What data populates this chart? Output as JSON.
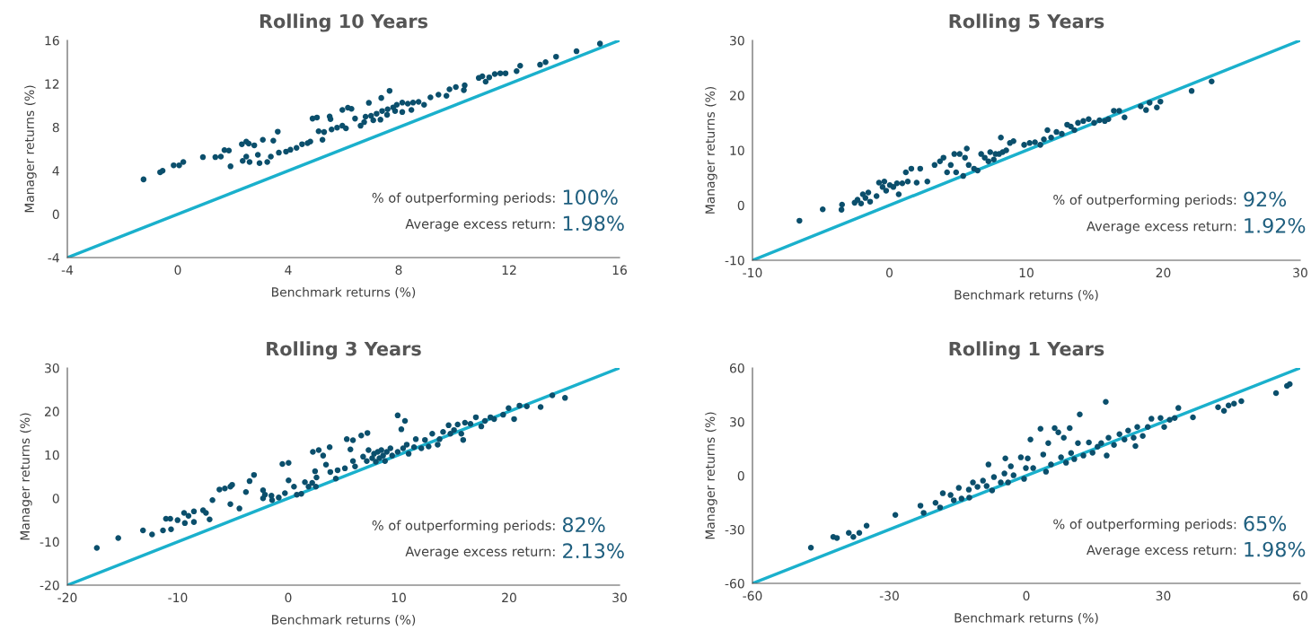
{
  "chart_data": [
    {
      "type": "scatter",
      "title": "Rolling 10 Years",
      "xlabel": "Benchmark returns (%)",
      "ylabel": "Manager returns (%)",
      "xlim": [
        -4,
        16
      ],
      "ylim": [
        -4,
        16
      ],
      "xticks": [
        -4,
        0,
        4,
        8,
        12,
        16
      ],
      "yticks": [
        -4,
        0,
        4,
        8,
        12,
        16
      ],
      "annotations": [
        "% of outperforming periods:",
        "100%",
        "Average excess return:",
        "1.98%"
      ],
      "series": [
        {
          "marker": "circle",
          "color": "#0b4f6c",
          "x": [
            -1.24,
            -0.64,
            -0.55,
            -0.15,
            0.05,
            0.2,
            0.91,
            1.36,
            1.56,
            1.69,
            1.85,
            1.91,
            2.32,
            2.48,
            2.57,
            2.77,
            2.35,
            2.48,
            2.6,
            2.9,
            2.96,
            3.08,
            3.24,
            3.37,
            3.46,
            3.62,
            3.66,
            3.92,
            4.08,
            4.3,
            4.5,
            4.7,
            4.8,
            4.88,
            5.04,
            5.1,
            5.24,
            5.3,
            5.5,
            5.53,
            5.57,
            5.77,
            5.96,
            6.09,
            5.96,
            6.16,
            6.29,
            6.42,
            6.62,
            6.75,
            6.8,
            6.92,
            7.37,
            7.67,
            7.0,
            7.2,
            7.4,
            7.6,
            7.8,
            7.93,
            8.13,
            8.33,
            8.52,
            8.72,
            8.92,
            7.08,
            7.34,
            7.58,
            7.87,
            8.13,
            8.46,
            9.15,
            9.44,
            9.73,
            9.84,
            10.07,
            10.39,
            10.36,
            10.9,
            11.03,
            11.15,
            11.28,
            11.48,
            11.68,
            11.87,
            12.27,
            12.4,
            13.12,
            13.32,
            13.7,
            14.44,
            15.29
          ],
          "values": [
            3.2,
            3.86,
            4.0,
            4.5,
            4.5,
            4.8,
            5.25,
            5.25,
            5.3,
            5.9,
            5.86,
            4.4,
            6.44,
            6.68,
            6.5,
            6.34,
            4.9,
            5.3,
            4.8,
            5.46,
            4.7,
            6.85,
            4.8,
            5.3,
            6.76,
            7.6,
            5.66,
            5.76,
            5.93,
            6.1,
            6.44,
            6.54,
            6.68,
            8.8,
            8.9,
            7.63,
            6.85,
            7.56,
            9.0,
            8.75,
            7.8,
            7.97,
            8.14,
            7.9,
            9.6,
            9.8,
            9.7,
            8.8,
            8.14,
            8.47,
            8.98,
            10.25,
            10.7,
            11.36,
            9.05,
            9.25,
            9.5,
            9.66,
            9.83,
            10.07,
            10.27,
            10.17,
            10.27,
            10.34,
            10.07,
            8.64,
            8.7,
            9.15,
            9.5,
            9.4,
            9.6,
            10.75,
            11.0,
            10.9,
            11.5,
            11.7,
            11.86,
            11.42,
            12.54,
            12.7,
            12.2,
            12.6,
            12.9,
            12.97,
            12.97,
            13.17,
            13.66,
            13.76,
            14.0,
            14.5,
            15.0,
            15.7
          ]
        },
        {
          "type": "line",
          "color": "#1ab0cc",
          "x": [
            -4,
            16
          ],
          "values": [
            -4,
            16
          ]
        }
      ]
    },
    {
      "type": "scatter",
      "title": "Rolling 5 Years",
      "xlabel": "Benchmark returns (%)",
      "ylabel": "Manager returns (%)",
      "xlim": [
        -10,
        30
      ],
      "ylim": [
        -10,
        30
      ],
      "xticks": [
        -10,
        0,
        10,
        20,
        30
      ],
      "yticks": [
        -10,
        0,
        10,
        20,
        30
      ],
      "annotations": [
        "% of outperforming periods:",
        "92%",
        "Average excess return:",
        "1.92%"
      ],
      "series": [
        {
          "marker": "circle",
          "color": "#0b4f6c",
          "x": [
            -6.57,
            -4.87,
            -3.5,
            -3.46,
            -2.54,
            -2.33,
            -2.07,
            -1.94,
            -1.75,
            -1.54,
            -1.41,
            -0.94,
            -0.76,
            -0.5,
            -0.37,
            -0.24,
            0.03,
            0.29,
            0.55,
            0.68,
            0.94,
            1.2,
            1.34,
            1.6,
            1.99,
            2.25,
            2.77,
            3.3,
            3.69,
            3.95,
            4.21,
            4.48,
            4.74,
            4.87,
            5.13,
            5.39,
            5.52,
            5.65,
            5.79,
            6.18,
            6.44,
            6.7,
            6.96,
            7.23,
            7.36,
            7.62,
            7.75,
            8.01,
            8.14,
            8.27,
            8.53,
            8.8,
            9.06,
            9.84,
            10.24,
            10.63,
            11.02,
            11.28,
            11.54,
            11.81,
            12.2,
            12.59,
            12.98,
            13.25,
            13.51,
            13.77,
            14.16,
            14.55,
            14.95,
            15.34,
            15.73,
            15.99,
            16.39,
            16.78,
            17.17,
            18.35,
            18.74,
            19.0,
            19.53,
            19.79,
            22.07,
            23.53
          ],
          "values": [
            -2.8,
            -0.73,
            -0.8,
            0.13,
            0.47,
            1.0,
            0.33,
            2.0,
            1.33,
            2.33,
            0.67,
            1.67,
            4.13,
            3.33,
            4.33,
            2.67,
            3.67,
            3.33,
            4.0,
            2.0,
            4.0,
            6.0,
            4.33,
            6.67,
            4.13,
            6.67,
            4.33,
            7.33,
            8.0,
            8.67,
            6.0,
            7.33,
            9.33,
            6.0,
            9.33,
            5.33,
            8.67,
            10.33,
            7.33,
            6.67,
            6.33,
            9.33,
            8.67,
            8.0,
            9.67,
            8.33,
            9.33,
            9.33,
            12.33,
            9.67,
            10.0,
            11.33,
            11.67,
            11.0,
            11.33,
            11.47,
            11.0,
            12.0,
            13.67,
            12.33,
            13.33,
            13.0,
            14.67,
            14.33,
            13.67,
            15.0,
            15.33,
            15.67,
            15.0,
            15.47,
            15.33,
            15.67,
            17.2,
            17.2,
            16.0,
            18.0,
            17.33,
            18.67,
            17.8,
            18.87,
            20.8,
            22.53
          ]
        },
        {
          "type": "line",
          "color": "#1ab0cc",
          "x": [
            -10,
            30
          ],
          "values": [
            -10,
            30
          ]
        }
      ]
    },
    {
      "type": "scatter",
      "title": "Rolling 3 Years",
      "xlabel": "Benchmark returns (%)",
      "ylabel": "Manager returns (%)",
      "xlim": [
        -20,
        30
      ],
      "ylim": [
        -20,
        30
      ],
      "xticks": [
        -20,
        -10,
        0,
        10,
        20,
        30
      ],
      "yticks": [
        -20,
        -10,
        0,
        10,
        20,
        30
      ],
      "annotations": [
        "% of outperforming periods:",
        "82%",
        "Average excess return:",
        "2.13%"
      ],
      "series": [
        {
          "marker": "circle",
          "color": "#0b4f6c",
          "x": [
            -17.33,
            -15.39,
            -13.15,
            -12.33,
            -11.34,
            -10.61,
            -11.07,
            -10.68,
            -10.02,
            -9.43,
            -9.03,
            -8.54,
            -9.36,
            -8.54,
            -7.71,
            -7.45,
            -7.12,
            -6.86,
            -6.23,
            -5.74,
            -5.24,
            -5.08,
            -5.24,
            -4.42,
            -3.83,
            -3.5,
            -3.1,
            -2.28,
            -2.28,
            -2.11,
            -1.52,
            -1.46,
            -0.86,
            -0.53,
            0.03,
            0.03,
            -0.3,
            0.52,
            0.78,
            1.18,
            1.51,
            1.84,
            2.17,
            2.5,
            2.23,
            2.76,
            3.16,
            3.75,
            2.43,
            2.56,
            3.42,
            3.81,
            4.47,
            4.31,
            5.13,
            5.3,
            5.86,
            5.63,
            5.86,
            6.05,
            6.61,
            7.17,
            6.78,
            7.11,
            7.27,
            7.6,
            7.77,
            7.93,
            8.1,
            8.26,
            8.43,
            8.59,
            8.76,
            8.92,
            9.25,
            9.41,
            9.91,
            10.57,
            10.24,
            9.91,
            10.4,
            10.9,
            10.73,
            11.55,
            11.39,
            12.05,
            12.38,
            12.71,
            13.04,
            13.53,
            13.7,
            14.02,
            14.52,
            14.68,
            15.01,
            15.34,
            15.67,
            15.84,
            16.0,
            16.5,
            16.99,
            17.48,
            17.81,
            18.31,
            18.64,
            19.46,
            19.95,
            20.45,
            20.94,
            21.6,
            22.85,
            23.91,
            25.06
          ],
          "values": [
            -11.43,
            -9.16,
            -7.39,
            -8.32,
            -7.39,
            -7.14,
            -4.71,
            -4.71,
            -5.04,
            -3.36,
            -4.03,
            -3.03,
            -5.71,
            -5.46,
            -2.77,
            -3.36,
            -4.87,
            -0.42,
            2.02,
            2.27,
            2.69,
            3.11,
            -1.34,
            -2.35,
            1.43,
            3.95,
            5.38,
            1.85,
            0.0,
            0.84,
            0.59,
            -0.42,
            0.17,
            7.9,
            8.15,
            4.12,
            1.18,
            2.69,
            0.84,
            1.01,
            3.7,
            2.69,
            3.53,
            2.69,
            10.67,
            11.09,
            9.83,
            11.76,
            6.22,
            4.79,
            7.73,
            6.05,
            6.47,
            4.54,
            6.89,
            13.61,
            13.36,
            11.26,
            8.57,
            7.31,
            14.45,
            15.04,
            9.58,
            8.57,
            11.09,
            9.24,
            10.25,
            8.4,
            10.67,
            9.24,
            11.09,
            9.83,
            8.57,
            10.67,
            11.51,
            9.83,
            19.08,
            17.82,
            15.88,
            10.67,
            11.51,
            10.25,
            12.35,
            13.61,
            11.76,
            11.51,
            13.44,
            11.93,
            14.87,
            12.35,
            13.61,
            15.29,
            16.81,
            14.87,
            15.71,
            16.97,
            14.87,
            13.44,
            17.39,
            17.14,
            18.66,
            16.55,
            17.82,
            18.66,
            18.24,
            19.24,
            20.76,
            18.24,
            21.34,
            21.18,
            21.01,
            23.7,
            23.11
          ]
        },
        {
          "type": "line",
          "color": "#1ab0cc",
          "x": [
            -20,
            30
          ],
          "values": [
            -20,
            30
          ]
        }
      ]
    },
    {
      "type": "scatter",
      "title": "Rolling 1 Years",
      "xlabel": "Benchmark returns (%)",
      "ylabel": "Manager returns (%)",
      "xlim": [
        -60,
        60
      ],
      "ylim": [
        -60,
        60
      ],
      "xticks": [
        -60,
        -30,
        0,
        30,
        60
      ],
      "yticks": [
        -60,
        -30,
        0,
        30,
        60
      ],
      "annotations": [
        "% of outperforming periods:",
        "65%",
        "Average excess return:",
        "1.98%"
      ],
      "series": [
        {
          "marker": "circle",
          "color": "#0b4f6c",
          "x": [
            -47.2,
            -42.3,
            -41.5,
            -38.9,
            -37.9,
            -36.6,
            -35.0,
            -28.7,
            -23.2,
            -22.5,
            -19.9,
            -18.9,
            -18.3,
            -16.6,
            -15.9,
            -14.8,
            -14.2,
            -12.6,
            -12.5,
            -11.7,
            -10.7,
            -9.5,
            -8.7,
            -8.3,
            -7.5,
            -7.1,
            -5.6,
            -4.6,
            -4.8,
            -4.0,
            -3.4,
            -2.8,
            -1.2,
            -0.5,
            -0.1,
            0.3,
            0.9,
            1.5,
            3.1,
            3.7,
            4.3,
            4.8,
            5.4,
            6.2,
            7.0,
            7.6,
            8.2,
            9.5,
            8.7,
            9.8,
            10.5,
            11.7,
            11.3,
            12.5,
            13.7,
            14.5,
            15.6,
            16.4,
            17.4,
            17.6,
            18.0,
            19.2,
            20.4,
            21.5,
            22.3,
            23.5,
            23.9,
            24.3,
            25.5,
            26.6,
            27.4,
            29.4,
            30.2,
            31.4,
            32.5,
            33.3,
            36.5,
            42.0,
            43.3,
            44.3,
            45.5,
            47.1,
            54.7,
            57.1,
            57.7
          ],
          "values": [
            -40.1,
            -34.1,
            -34.7,
            -31.9,
            -34.1,
            -31.9,
            -27.9,
            -21.9,
            -16.7,
            -20.7,
            -15.1,
            -17.7,
            -9.8,
            -10.8,
            -13.7,
            -6.8,
            -12.8,
            -7.8,
            -12.2,
            -3.8,
            -6.2,
            -2.8,
            -5.8,
            6.2,
            -8.2,
            -0.8,
            -3.8,
            9.6,
            1.2,
            -3.8,
            5.2,
            0.2,
            10.2,
            -1.8,
            4.2,
            9.6,
            20.1,
            4.2,
            26.1,
            11.8,
            2.2,
            18.1,
            6.2,
            26.5,
            24.1,
            10.2,
            21.1,
            26.5,
            7.2,
            12.6,
            9.2,
            34.1,
            18.1,
            11.2,
            18.5,
            12.8,
            16.1,
            18.1,
            41.1,
            11.2,
            21.1,
            17.1,
            23.1,
            20.1,
            25.1,
            21.1,
            16.5,
            27.1,
            22.1,
            27.1,
            31.7,
            32.1,
            27.1,
            31.1,
            32.1,
            37.7,
            32.5,
            38.1,
            36.1,
            39.1,
            40.1,
            41.5,
            46.0,
            50.0,
            51.0
          ]
        },
        {
          "type": "line",
          "color": "#1ab0cc",
          "x": [
            -60,
            60
          ],
          "values": [
            -60,
            60
          ]
        }
      ]
    }
  ]
}
